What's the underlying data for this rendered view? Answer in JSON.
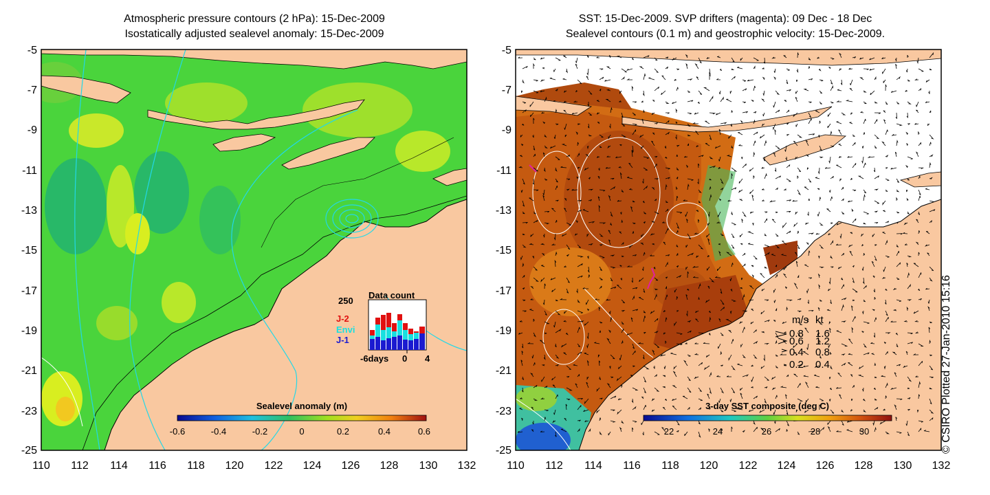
{
  "left_panel": {
    "title_line1": "Atmospheric pressure contours (2 hPa): 15-Dec-2009",
    "title_line2": "Isostatically adjusted sealevel anomaly: 15-Dec-2009",
    "colorbar_label": "Sealevel anomaly (m)",
    "colorbar_ticks": [
      "-0.6",
      "-0.4",
      "-0.2",
      "0",
      "0.2",
      "0.4",
      "0.6"
    ],
    "data_count": {
      "title": "Data count",
      "ymax_label": "250",
      "x_ticks": [
        "-6days",
        "0",
        "4"
      ],
      "legend": [
        {
          "label": "J-2",
          "color": "#e01010"
        },
        {
          "label": "Envi",
          "color": "#19e0e0"
        },
        {
          "label": "J-1",
          "color": "#1a1ad0"
        }
      ]
    }
  },
  "right_panel": {
    "title_line1": "SST: 15-Dec-2009. SVP drifters (magenta): 09 Dec - 18 Dec",
    "title_line2": "Sealevel contours (0.1 m) and geostrophic velocity: 15-Dec-2009.",
    "colorbar_label": "3-day SST composite (deg C)",
    "colorbar_ticks": [
      "22",
      "24",
      "26",
      "28",
      "30"
    ],
    "velocity_legend": {
      "header_ms": "m/s",
      "header_kt": "kt",
      "rows": [
        {
          "ms": "0.8",
          "kt": "1.6"
        },
        {
          "ms": "0.6",
          "kt": "1.2"
        },
        {
          "ms": "0.4",
          "kt": "0.8"
        },
        {
          "ms": "0.2",
          "kt": "0.4"
        }
      ]
    }
  },
  "axes": {
    "lat_ticks": [
      "-5",
      "-7",
      "-9",
      "-11",
      "-13",
      "-15",
      "-17",
      "-19",
      "-21",
      "-23",
      "-25"
    ],
    "lon_ticks": [
      "110",
      "112",
      "114",
      "116",
      "118",
      "120",
      "122",
      "124",
      "126",
      "128",
      "130",
      "132"
    ]
  },
  "credit": "© CSIRO Plotted 27-Jan-2010 15:16",
  "colors": {
    "land": "#f9c8a0",
    "sla_green": "#3cd84a",
    "sst_orange": "#d06a10",
    "ocean_white": "#ffffff"
  }
}
